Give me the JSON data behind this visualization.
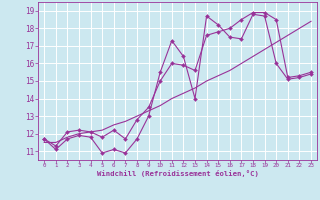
{
  "bg_color": "#cce8f0",
  "grid_color": "#ffffff",
  "line_color": "#993399",
  "xlabel": "Windchill (Refroidissement éolien,°C)",
  "xlim": [
    -0.5,
    23.5
  ],
  "ylim": [
    10.5,
    19.5
  ],
  "yticks": [
    11,
    12,
    13,
    14,
    15,
    16,
    17,
    18,
    19
  ],
  "xticks": [
    0,
    1,
    2,
    3,
    4,
    5,
    6,
    7,
    8,
    9,
    10,
    11,
    12,
    13,
    14,
    15,
    16,
    17,
    18,
    19,
    20,
    21,
    22,
    23
  ],
  "series1_x": [
    0,
    1,
    2,
    3,
    4,
    5,
    6,
    7,
    8,
    9,
    10,
    11,
    12,
    13,
    14,
    15,
    16,
    17,
    18,
    19,
    20,
    21,
    22,
    23
  ],
  "series1_y": [
    11.7,
    11.1,
    11.7,
    11.9,
    11.8,
    10.9,
    11.1,
    10.9,
    11.7,
    13.0,
    15.5,
    17.3,
    16.4,
    14.0,
    18.7,
    18.2,
    17.5,
    17.4,
    18.8,
    18.7,
    16.0,
    15.1,
    15.2,
    15.4
  ],
  "series2_x": [
    0,
    1,
    2,
    3,
    4,
    5,
    6,
    7,
    8,
    9,
    10,
    11,
    12,
    13,
    14,
    15,
    16,
    17,
    18,
    19,
    20,
    21,
    22,
    23
  ],
  "series2_y": [
    11.7,
    11.3,
    12.1,
    12.2,
    12.1,
    11.8,
    12.2,
    11.7,
    12.8,
    13.5,
    15.0,
    16.0,
    15.9,
    15.6,
    17.6,
    17.8,
    18.0,
    18.5,
    18.9,
    18.9,
    18.5,
    15.2,
    15.3,
    15.5
  ],
  "series3_x": [
    0,
    1,
    2,
    3,
    4,
    5,
    6,
    7,
    8,
    9,
    10,
    11,
    12,
    13,
    14,
    15,
    16,
    17,
    18,
    19,
    20,
    21,
    22,
    23
  ],
  "series3_y": [
    11.5,
    11.5,
    11.8,
    12.0,
    12.1,
    12.2,
    12.5,
    12.7,
    13.0,
    13.3,
    13.6,
    14.0,
    14.3,
    14.6,
    15.0,
    15.3,
    15.6,
    16.0,
    16.4,
    16.8,
    17.2,
    17.6,
    18.0,
    18.4
  ]
}
